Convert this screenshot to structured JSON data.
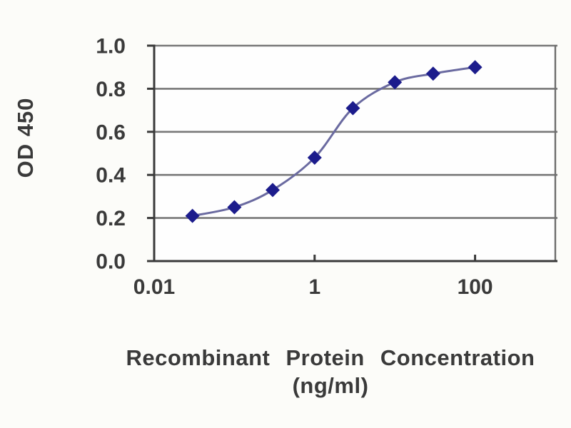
{
  "figure": {
    "background": "#fcfcf9",
    "x_axis_title_line1": "Recombinant Protein Concentration",
    "x_axis_title_line2": "(ng/ml)"
  },
  "chart_data": {
    "type": "line",
    "title": "",
    "xlabel": "Recombinant Protein Concentration (ng/ml)",
    "ylabel": "OD 450",
    "x_scale": "log",
    "xlim": [
      0.01,
      1000
    ],
    "ylim": [
      0.0,
      1.0
    ],
    "grid": true,
    "legend": "none",
    "marker": "diamond",
    "x": [
      0.03,
      0.1,
      0.3,
      1,
      3,
      10,
      30,
      100
    ],
    "y": [
      0.21,
      0.25,
      0.33,
      0.48,
      0.71,
      0.83,
      0.87,
      0.9
    ],
    "y_ticks": [
      0.0,
      0.2,
      0.4,
      0.6,
      0.8,
      1.0
    ],
    "y_tick_labels": [
      "0.0",
      "0.2",
      "0.4",
      "0.6",
      "0.8",
      "1.0"
    ],
    "x_tick_values": [
      0.01,
      1,
      100
    ],
    "x_tick_labels": [
      "0.01",
      "1",
      "100"
    ],
    "x_axis_tick_marks": [
      1,
      100
    ],
    "colors": {
      "line": "#6a6aa0",
      "marker": "#1c1c8c",
      "grid": "#787878",
      "axis": "#3a3a3a",
      "border": "#6e6e6e",
      "text": "#3a3a3a",
      "plot_background": "#fefefe"
    }
  }
}
